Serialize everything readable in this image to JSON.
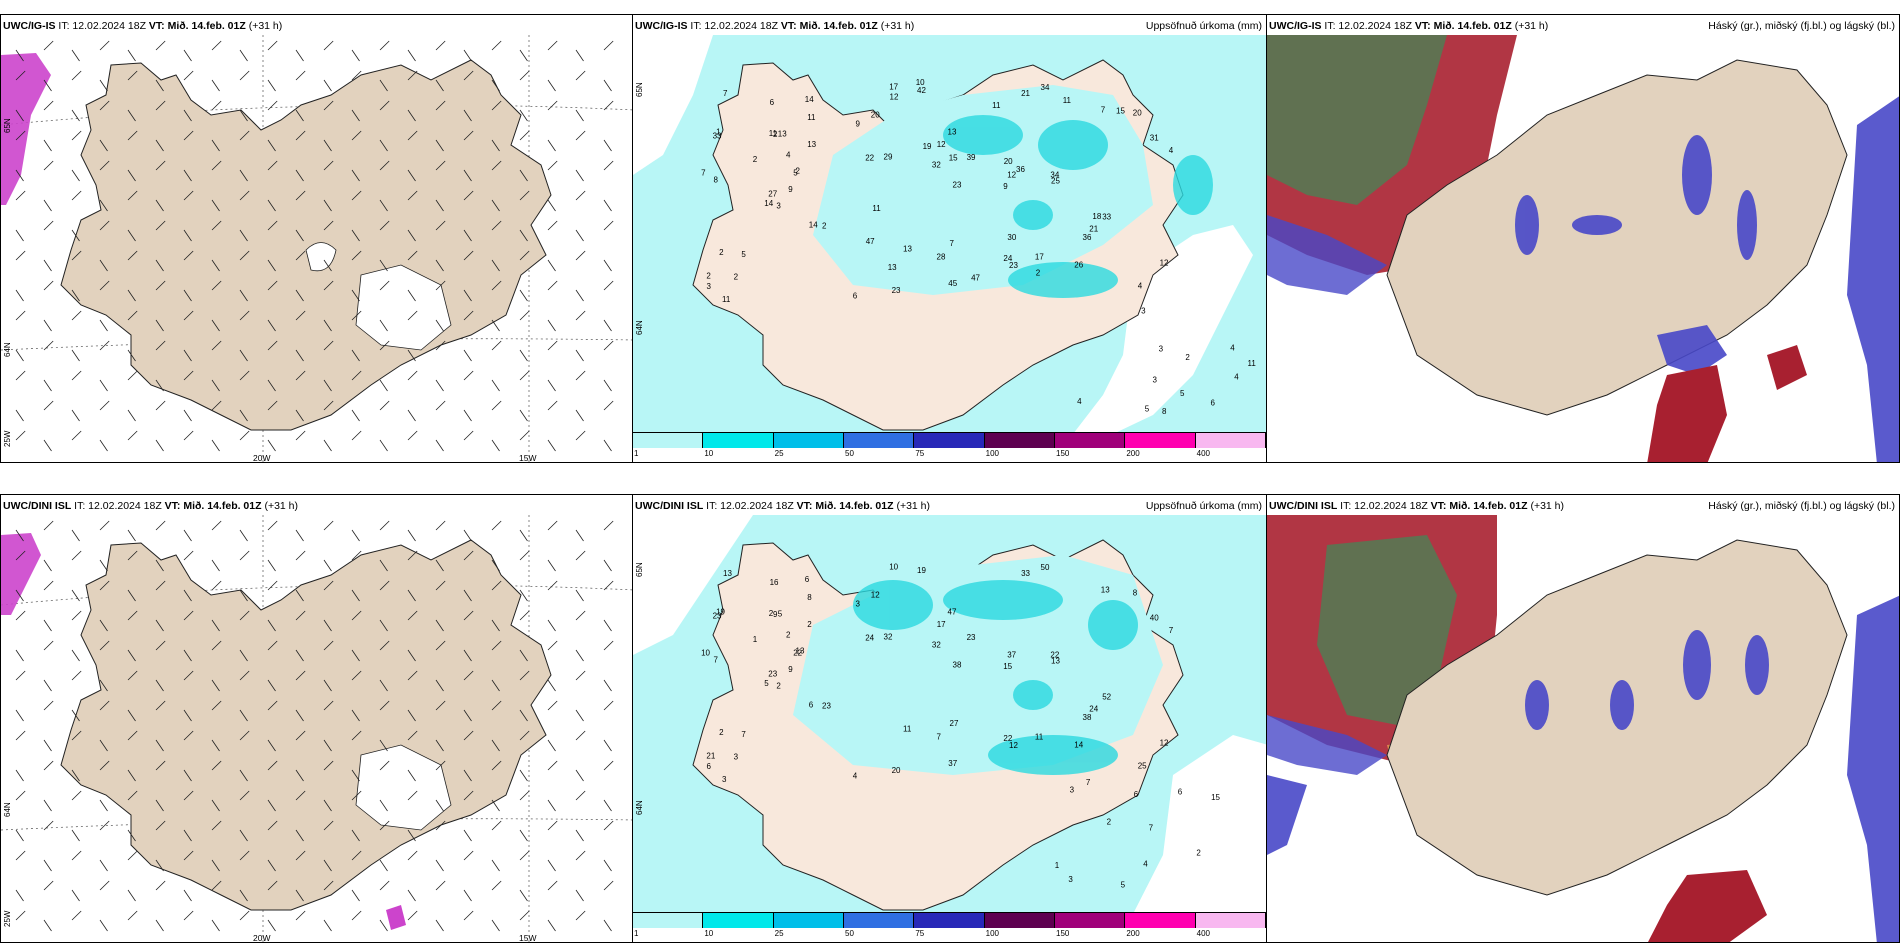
{
  "top": {
    "p1": {
      "model": "UWC/IG-IS",
      "it": "IT: 12.02.2024 18Z",
      "vt_label": "VT:",
      "vt": "Mið. 14.feb. 01Z",
      "lead": "(+31 h)",
      "lon_labels": [
        "20W",
        "15W"
      ],
      "lat_labels": [
        "65N",
        "64N",
        "25W"
      ]
    },
    "p2": {
      "model": "UWC/IG-IS",
      "it": "IT: 12.02.2024 18Z",
      "vt_label": "VT:",
      "vt": "Mið. 14.feb. 01Z",
      "lead": "(+31 h)",
      "right": "Uppsöfnuð úrkoma (mm)",
      "lat_labels": [
        "65N",
        "64N"
      ]
    },
    "p3": {
      "model": "UWC/IG-IS",
      "it": "IT: 12.02.2024 18Z",
      "vt_label": "VT:",
      "vt": "Mið. 14.feb. 01Z",
      "lead": "(+31 h)",
      "right": "Háský (gr.), miðský (fj.bl.) og lágský (bl.)"
    }
  },
  "bottom": {
    "p1": {
      "model": "UWC/DINI ISL",
      "it": "IT: 12.02.2024 18Z",
      "vt_label": "VT:",
      "vt": "Mið. 14.feb. 01Z",
      "lead": "(+31 h)",
      "lon_labels": [
        "20W",
        "15W"
      ],
      "lat_labels": [
        "64N",
        "25W"
      ]
    },
    "p2": {
      "model": "UWC/DINI ISL",
      "it": "IT: 12.02.2024 18Z",
      "vt_label": "VT:",
      "vt": "Mið. 14.feb. 01Z",
      "lead": "(+31 h)",
      "right": "Uppsöfnuð úrkoma (mm)",
      "lat_labels": [
        "65N",
        "64N"
      ]
    },
    "p3": {
      "model": "UWC/DINI ISL",
      "it": "IT: 12.02.2024 18Z",
      "vt_label": "VT:",
      "vt": "Mið. 14.feb. 01Z",
      "lead": "(+31 h)",
      "right": "Háský (gr.), miðský (fj.bl.) og lágský (bl.)"
    }
  },
  "colorbar": {
    "ticks": [
      "1",
      "10",
      "25",
      "50",
      "75",
      "100",
      "150",
      "200",
      "400"
    ],
    "colors": [
      "#b8f6f6",
      "#00e8ea",
      "#00bfe9",
      "#2f6fe2",
      "#2828b8",
      "#5e0050",
      "#a0007a",
      "#ff00b0",
      "#f8b8f0"
    ]
  },
  "colors": {
    "land": "#e2d2be",
    "land_precip": "#f8e8dc",
    "ocean_precip": "#b8f6f6",
    "high_cloud": "#2a9a5a",
    "mid_cloud": "#a82030",
    "low_cloud": "#4848c8"
  },
  "precip_labels_top": [
    "3",
    "33",
    "27",
    "2",
    "5",
    "5",
    "14",
    "13",
    "11",
    "9",
    "7",
    "6",
    "8",
    "9",
    "14",
    "13",
    "11",
    "11",
    "4",
    "2",
    "2",
    "3",
    "2",
    "2",
    "2",
    "2",
    "1",
    "6",
    "7",
    "14",
    "4",
    "9",
    "24",
    "12",
    "13",
    "7",
    "7",
    "4",
    "12",
    "33",
    "34",
    "39",
    "32",
    "36",
    "45",
    "22",
    "34",
    "23",
    "23",
    "25",
    "13",
    "31",
    "20",
    "21",
    "26",
    "28",
    "42",
    "17",
    "17",
    "20",
    "21",
    "23",
    "29",
    "12",
    "15",
    "10",
    "11",
    "11",
    "36",
    "47",
    "30",
    "47",
    "18",
    "15",
    "13",
    "12",
    "19",
    "11",
    "20",
    "2",
    "3",
    "4",
    "2",
    "4",
    "5",
    "4",
    "3",
    "6",
    "8",
    "5",
    "3",
    "11"
  ],
  "precip_labels_bottom": [
    "2",
    "23",
    "23",
    "21",
    "22",
    "7",
    "6",
    "5",
    "8",
    "9",
    "13",
    "4",
    "7",
    "3",
    "5",
    "2",
    "3",
    "2",
    "2",
    "2",
    "1",
    "6",
    "3",
    "9",
    "13",
    "23",
    "19",
    "16",
    "10",
    "6",
    "7",
    "15",
    "22",
    "37",
    "47",
    "13",
    "27",
    "25",
    "12",
    "52",
    "50",
    "23",
    "32",
    "38",
    "37",
    "24",
    "22",
    "20",
    "12",
    "13",
    "11",
    "40",
    "12",
    "24",
    "14",
    "7",
    "19",
    "10",
    "11",
    "8",
    "33",
    "38",
    "32",
    "17",
    "15",
    "7",
    "6",
    "6",
    "7",
    "1",
    "4",
    "5",
    "2",
    "2",
    "3",
    "3"
  ]
}
